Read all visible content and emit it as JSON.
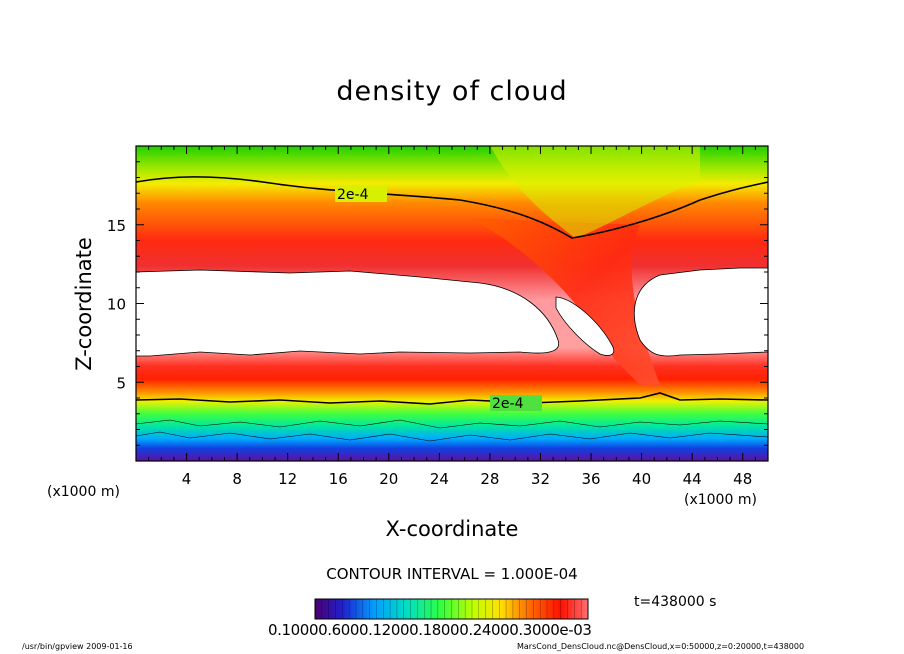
{
  "chart_data": {
    "type": "heatmap",
    "title": "density of cloud",
    "xlabel": "X-coordinate",
    "ylabel": "Z-coordinate",
    "x_unit": "(x1000 m)",
    "y_unit": "(x1000 m)",
    "xlim": [
      0,
      50
    ],
    "ylim": [
      0,
      20
    ],
    "x_ticks": [
      4,
      8,
      12,
      16,
      20,
      24,
      28,
      32,
      36,
      40,
      44,
      48
    ],
    "y_ticks": [
      5,
      10,
      15
    ],
    "contour_labels": [
      "2e-4",
      "2e-4"
    ],
    "contour_interval": "CONTOUR INTERVAL = 1.000E-04",
    "time": "t=438000 s",
    "colorbar_labels": "0.10000.6000.12000.18000.24000.3000e-03",
    "colormap": [
      "#5a0090",
      "#0030ff",
      "#00c8ff",
      "#00ff40",
      "#ffff00",
      "#ff8000",
      "#ff0000",
      "#ff8080"
    ]
  },
  "footer": {
    "left": "/usr/bin/gpview   2009-01-16",
    "right": "MarsCond_DensCloud.nc@DensCloud,x=0:50000,z=0:20000,t=438000"
  }
}
